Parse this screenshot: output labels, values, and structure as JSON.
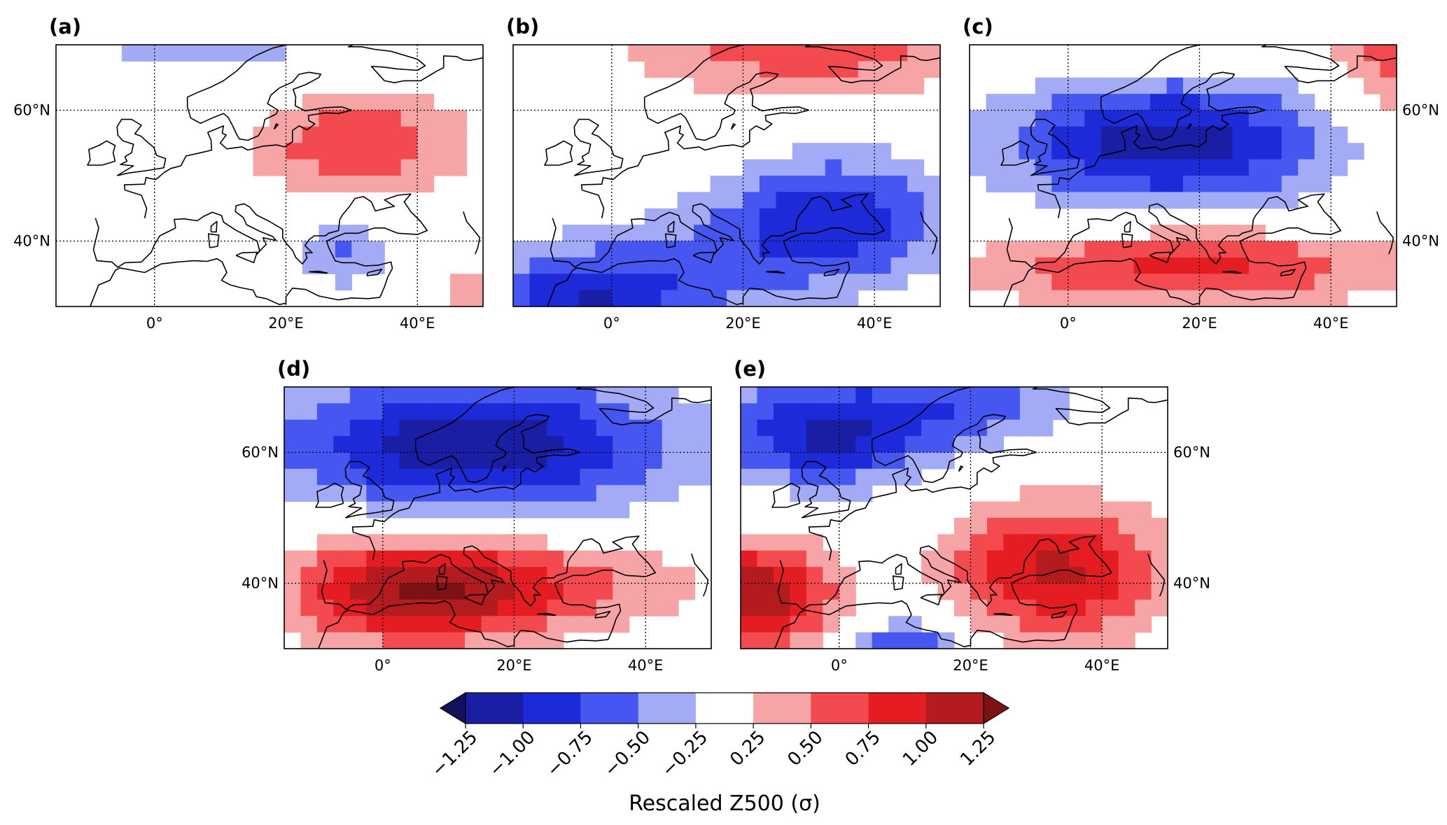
{
  "figure": {
    "colorbar": {
      "title": "Rescaled Z500 (σ)",
      "tick_labels": [
        "−1.25",
        "−1.00",
        "−0.75",
        "−0.50",
        "−0.25",
        "0.25",
        "0.50",
        "0.75",
        "1.00",
        "1.25"
      ],
      "levels": [
        -1.25,
        -1.0,
        -0.75,
        -0.5,
        -0.25,
        0.25,
        0.5,
        0.75,
        1.0,
        1.25
      ],
      "colors": {
        "extend_low": "#11115e",
        "bins": [
          "#1a1ea5",
          "#1c2ad9",
          "#4556f1",
          "#a4abf6",
          "#ffffff",
          "#f7a4a6",
          "#f24a4e",
          "#e31d22",
          "#b41b1f"
        ],
        "extend_high": "#7d1214"
      }
    },
    "axes": {
      "x_ticks": [
        0,
        20,
        40
      ],
      "x_tick_labels": [
        "0°",
        "20°E",
        "40°E"
      ],
      "y_ticks": [
        40,
        60
      ],
      "y_tick_labels": [
        "40°N",
        "60°N"
      ],
      "lon_range": [
        -15,
        50
      ],
      "lat_range": [
        30,
        70
      ]
    },
    "panels": [
      {
        "id": "a",
        "label": "(a)",
        "lat_labels_side": "left",
        "anomalies": [
          {
            "lon": 10,
            "lat": 75,
            "amp": -0.45,
            "slon": 26,
            "slat": 7
          },
          {
            "lon": 31,
            "lat": 55,
            "amp": 0.72,
            "slon": 12,
            "slat": 6
          },
          {
            "lon": 29,
            "lat": 38,
            "amp": -0.55,
            "slon": 6,
            "slat": 3.5
          },
          {
            "lon": 51,
            "lat": 30,
            "amp": 0.5,
            "slon": 6,
            "slat": 5
          }
        ]
      },
      {
        "id": "b",
        "label": "(b)",
        "lat_labels_side": "none",
        "anomalies": [
          {
            "lon": 30,
            "lat": 72,
            "amp": 0.75,
            "slon": 20,
            "slat": 7
          },
          {
            "lon": 34,
            "lat": 44,
            "amp": -0.85,
            "slon": 12,
            "slat": 7
          },
          {
            "lon": -4,
            "lat": 31,
            "amp": -0.9,
            "slon": 13,
            "slat": 5
          },
          {
            "lon": 15,
            "lat": 38,
            "amp": -0.35,
            "slon": 18,
            "slat": 6
          }
        ]
      },
      {
        "id": "c",
        "label": "(c)",
        "lat_labels_side": "right",
        "anomalies": [
          {
            "lon": 15,
            "lat": 55,
            "amp": -1.15,
            "slon": 18,
            "slat": 7
          },
          {
            "lon": 18,
            "lat": 36,
            "amp": 0.85,
            "slon": 22,
            "slat": 4.5
          },
          {
            "lon": 49,
            "lat": 70,
            "amp": 0.7,
            "slon": 6,
            "slat": 8
          },
          {
            "lon": 3,
            "lat": 73,
            "amp": 0.55,
            "slon": 14,
            "slat": 4
          }
        ]
      },
      {
        "id": "d",
        "label": "(d)",
        "lat_labels_side": "left",
        "anomalies": [
          {
            "lon": 14,
            "lat": 61,
            "amp": -1.2,
            "slon": 22,
            "slat": 7.5
          },
          {
            "lon": 5,
            "lat": 39,
            "amp": 1.2,
            "slon": 14,
            "slat": 6
          },
          {
            "lon": 30,
            "lat": 40,
            "amp": 0.45,
            "slon": 16,
            "slat": 5
          }
        ]
      },
      {
        "id": "e",
        "label": "(e)",
        "lat_labels_side": "right",
        "anomalies": [
          {
            "lon": -2,
            "lat": 63,
            "amp": -1.05,
            "slon": 12,
            "slat": 6
          },
          {
            "lon": 21,
            "lat": 68,
            "amp": -0.55,
            "slon": 11,
            "slat": 5
          },
          {
            "lon": 33,
            "lat": 42,
            "amp": 1.05,
            "slon": 12,
            "slat": 7.5
          },
          {
            "lon": -13,
            "lat": 38,
            "amp": 1.2,
            "slon": 9,
            "slat": 6
          },
          {
            "lon": 10,
            "lat": 30,
            "amp": -0.8,
            "slon": 6,
            "slat": 3.5
          }
        ]
      }
    ]
  }
}
